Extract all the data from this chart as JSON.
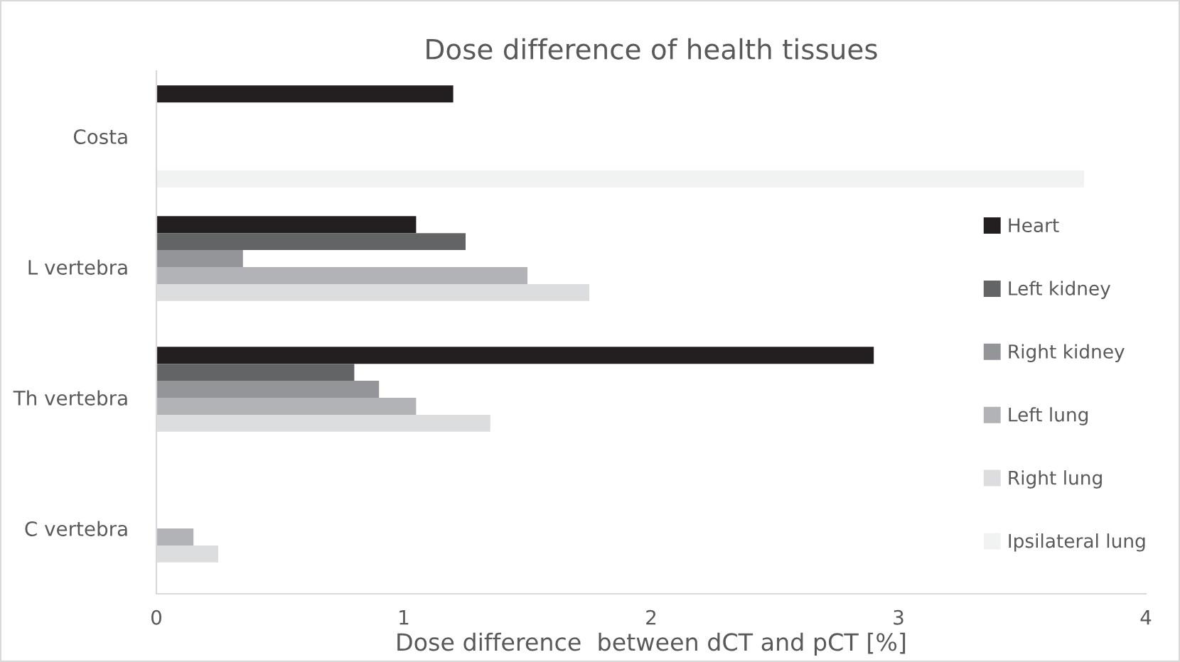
{
  "chart_data": {
    "type": "bar",
    "orientation": "horizontal",
    "title": "Dose difference of health tissues",
    "xlabel": "Dose difference  between dCT and pCT [%]",
    "categories": [
      "Costa",
      "L vertebra",
      "Th vertebra",
      "C vertebra"
    ],
    "series": [
      {
        "name": "Heart",
        "color": "#231f20",
        "values": [
          1.2,
          1.05,
          2.9,
          null
        ]
      },
      {
        "name": "Left kidney",
        "color": "#636466",
        "values": [
          null,
          1.25,
          0.8,
          null
        ]
      },
      {
        "name": "Right kidney",
        "color": "#939598",
        "values": [
          null,
          0.35,
          0.9,
          null
        ]
      },
      {
        "name": "Left lung",
        "color": "#b1b3b6",
        "values": [
          null,
          1.5,
          1.05,
          0.15
        ]
      },
      {
        "name": "Right lung",
        "color": "#dcdddf",
        "values": [
          null,
          1.75,
          1.35,
          0.25
        ]
      },
      {
        "name": "Ipsilateral lung",
        "color": "#f1f2f2",
        "values": [
          3.75,
          null,
          null,
          null
        ]
      }
    ],
    "xlim": [
      0,
      4
    ],
    "xticks": [
      0,
      1,
      2,
      3,
      4
    ],
    "grid": false,
    "legend": "right"
  }
}
